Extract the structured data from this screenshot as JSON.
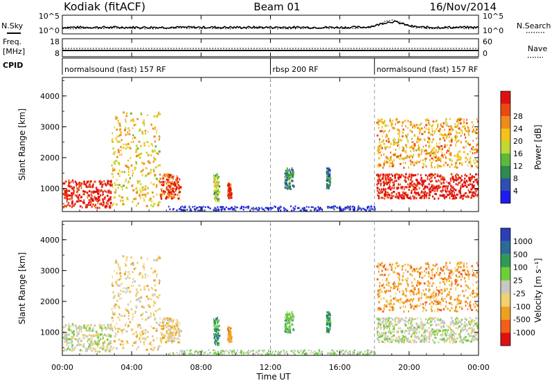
{
  "chart_data": {
    "type": "heatmap",
    "title": "Kodiak (fitACF)",
    "beam": "Beam 01",
    "date": "16/Nov/2014",
    "x_axis": {
      "label": "Time UT",
      "ticks": [
        "00:00",
        "04:00",
        "08:00",
        "12:00",
        "16:00",
        "20:00",
        "00:00"
      ],
      "range_hours": [
        0,
        24
      ]
    },
    "top_panel": {
      "left_label": "N.Sky",
      "right_label": "N.Search",
      "left_ticks": [
        "10^5",
        "10^0"
      ],
      "right_ticks": [
        "10^5",
        "10^0"
      ]
    },
    "freq_panel": {
      "left_label_line1": "Freq.",
      "left_label_line2": "[MHz]",
      "right_label": "Nave",
      "left_ticks": [
        "18",
        "8"
      ],
      "right_ticks": [
        "60",
        "0"
      ]
    },
    "cpid": {
      "label": "CPID",
      "segments": [
        {
          "name": "normalsound (fast) 157 RF",
          "start_hour": 0,
          "end_hour": 12
        },
        {
          "name": "rbsp 200 RF",
          "start_hour": 12,
          "end_hour": 18
        },
        {
          "name": "normalsound (fast) 157 RF",
          "start_hour": 18,
          "end_hour": 24
        }
      ]
    },
    "power_panel": {
      "ylabel": "Slant Range [km]",
      "yticks": [
        "1000",
        "2000",
        "3000",
        "4000"
      ],
      "ylim": [
        250,
        4600
      ],
      "colorbar_label": "Power [dB]",
      "colorbar_ticks": [
        "4",
        "8",
        "12",
        "16",
        "20",
        "24",
        "28"
      ],
      "colorbar_colors": [
        "#1c1cf0",
        "#2f4fb0",
        "#2e8a4e",
        "#5eb83a",
        "#bfd832",
        "#f5c21c",
        "#f08a1a",
        "#ea4a12",
        "#e01010"
      ]
    },
    "velocity_panel": {
      "ylabel": "Slant Range [km]",
      "yticks": [
        "1000",
        "2000",
        "3000",
        "4000"
      ],
      "ylim": [
        250,
        4600
      ],
      "colorbar_label": "Velocity [m s⁻¹]",
      "colorbar_ticks": [
        "1000",
        "500",
        "100",
        "25",
        "-25",
        "-100",
        "-500",
        "-1000"
      ],
      "colorbar_colors": [
        "#2a3fb8",
        "#2c6a9a",
        "#2f9a55",
        "#6ccf3a",
        "#c8c8c0",
        "#f0d070",
        "#f0a020",
        "#f06018",
        "#e01010"
      ]
    },
    "scatter_regions": [
      {
        "start_hour": 0.0,
        "end_hour": 2.8,
        "range_km": [
          400,
          1300
        ],
        "power_db": 28,
        "velocity": -25
      },
      {
        "start_hour": 2.8,
        "end_hour": 5.6,
        "range_km": [
          450,
          3500
        ],
        "power_db": 18,
        "velocity": -100
      },
      {
        "start_hour": 5.6,
        "end_hour": 6.8,
        "range_km": [
          700,
          1500
        ],
        "power_db": 24,
        "velocity": -100
      },
      {
        "start_hour": 8.7,
        "end_hour": 9.0,
        "range_km": [
          600,
          1500
        ],
        "power_db": 14,
        "velocity": 100
      },
      {
        "start_hour": 9.5,
        "end_hour": 9.7,
        "range_km": [
          700,
          1200
        ],
        "power_db": 26,
        "velocity": -500
      },
      {
        "start_hour": 12.8,
        "end_hour": 13.3,
        "range_km": [
          1000,
          1700
        ],
        "power_db": 8,
        "velocity": 25
      },
      {
        "start_hour": 15.2,
        "end_hour": 15.4,
        "range_km": [
          1000,
          1700
        ],
        "power_db": 8,
        "velocity": 100
      },
      {
        "start_hour": 18.1,
        "end_hour": 24.0,
        "range_km": [
          700,
          1500
        ],
        "power_db": 28,
        "velocity": -25
      },
      {
        "start_hour": 18.1,
        "end_hour": 24.0,
        "range_km": [
          1700,
          3300
        ],
        "power_db": 20,
        "velocity": -500
      }
    ]
  }
}
